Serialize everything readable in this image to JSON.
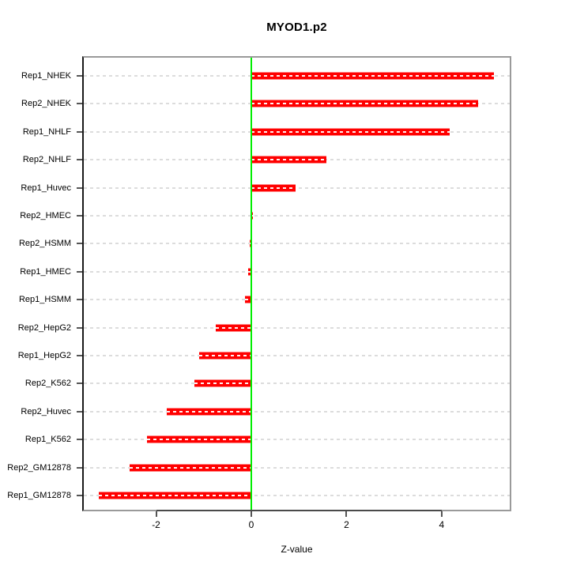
{
  "chart_data": {
    "type": "bar",
    "orientation": "horizontal",
    "title": "MYOD1.p2",
    "xlabel": "Z-value",
    "ylabel": "",
    "categories": [
      "Rep1_NHEK",
      "Rep2_NHEK",
      "Rep1_NHLF",
      "Rep2_NHLF",
      "Rep1_Huvec",
      "Rep2_HMEC",
      "Rep2_HSMM",
      "Rep1_HMEC",
      "Rep1_HSMM",
      "Rep2_HepG2",
      "Rep1_HepG2",
      "Rep2_K562",
      "Rep2_Huvec",
      "Rep1_K562",
      "Rep2_GM12878",
      "Rep1_GM12878"
    ],
    "values": [
      5.1,
      4.77,
      4.17,
      1.58,
      0.93,
      0.03,
      -0.03,
      -0.06,
      -0.14,
      -0.75,
      -1.1,
      -1.19,
      -1.78,
      -2.19,
      -2.56,
      -3.21
    ],
    "xlim": [
      -3.52,
      5.43
    ],
    "xticks": [
      -2,
      0,
      2,
      4
    ],
    "grid": true,
    "legend": null,
    "colors": {
      "bar": "#ff0000",
      "bar_edge": "#ff8a8a",
      "zero_line": "#00ee00",
      "gridline": "#dcdcdc",
      "box_border": "#9a9a9a",
      "axis_line": "#1a1a1a",
      "tick": "#555555",
      "text": "#000000",
      "background": "#ffffff"
    }
  }
}
